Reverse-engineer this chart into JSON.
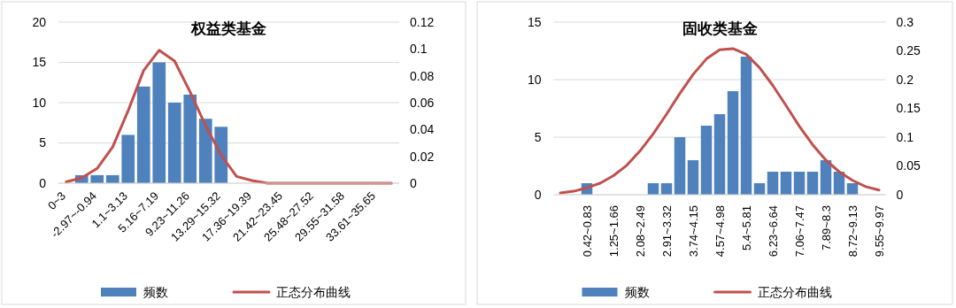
{
  "chart_data": [
    {
      "type": "bar",
      "title": "权益类基金",
      "categories": [
        "0~3",
        null,
        "-2.97~-0.94",
        null,
        "1.1~3.13",
        null,
        "5.16~7.19",
        null,
        "9.23~11.26",
        null,
        "13.29~15.32",
        null,
        "17.36~19.39",
        null,
        "21.42~23.45",
        null,
        "25.48~27.52",
        null,
        "29.55~31.58",
        null,
        "33.61~35.65",
        null
      ],
      "series": [
        {
          "name": "频数",
          "type": "bar",
          "color": "#4f81bd",
          "values": [
            0,
            1,
            1,
            1,
            6,
            12,
            15,
            10,
            11,
            8,
            7,
            0,
            0,
            0,
            0,
            0,
            0,
            0,
            0,
            0,
            0,
            0
          ]
        },
        {
          "name": "正态分布曲线",
          "type": "line",
          "axis": "y2",
          "color": "#c0504d",
          "values": [
            0.001,
            0.004,
            0.011,
            0.027,
            0.054,
            0.084,
            0.099,
            0.091,
            0.068,
            0.043,
            0.021,
            0.005,
            0.002,
            0,
            0,
            0,
            0,
            0,
            0,
            0,
            0,
            0
          ]
        }
      ],
      "ylim": [
        0,
        20
      ],
      "yticks": [
        0,
        5,
        10,
        15,
        20
      ],
      "y2lim": [
        0,
        0.12
      ],
      "y2ticks": [
        0,
        0.02,
        0.04,
        0.06,
        0.08,
        0.1,
        0.12
      ],
      "grid": "y",
      "legend": "bottom"
    },
    {
      "type": "bar",
      "title": "固收类基金",
      "categories": [
        null,
        null,
        "0.42~0.83",
        null,
        "1.25~1.66",
        null,
        "2.08~2.49",
        null,
        "2.91~3.32",
        null,
        "3.74~4.15",
        null,
        "4.57~4.98",
        null,
        "5.4~5.81",
        null,
        "6.23~6.64",
        null,
        "7.06~7.47",
        null,
        "7.89~8.3",
        null,
        "8.72~9.13",
        null,
        "9.55~9.97"
      ],
      "series": [
        {
          "name": "频数",
          "type": "bar",
          "color": "#4f81bd",
          "values": [
            0,
            0,
            1,
            0,
            0,
            0,
            0,
            1,
            1,
            5,
            3,
            6,
            7,
            9,
            12,
            1,
            2,
            2,
            2,
            2,
            3,
            2,
            1,
            0,
            0
          ]
        },
        {
          "name": "正态分布曲线",
          "type": "line",
          "axis": "y2",
          "color": "#c0504d",
          "values": [
            0.003,
            0.006,
            0.012,
            0.02,
            0.033,
            0.051,
            0.076,
            0.106,
            0.14,
            0.176,
            0.209,
            0.236,
            0.252,
            0.254,
            0.244,
            0.221,
            0.19,
            0.155,
            0.119,
            0.087,
            0.06,
            0.04,
            0.025,
            0.014,
            0.008
          ]
        }
      ],
      "ylim": [
        0,
        15
      ],
      "yticks": [
        0,
        5,
        10,
        15
      ],
      "y2lim": [
        0,
        0.3
      ],
      "y2ticks": [
        0,
        0.05,
        0.1,
        0.15,
        0.2,
        0.25,
        0.3
      ],
      "grid": "y",
      "legend": "bottom"
    }
  ]
}
